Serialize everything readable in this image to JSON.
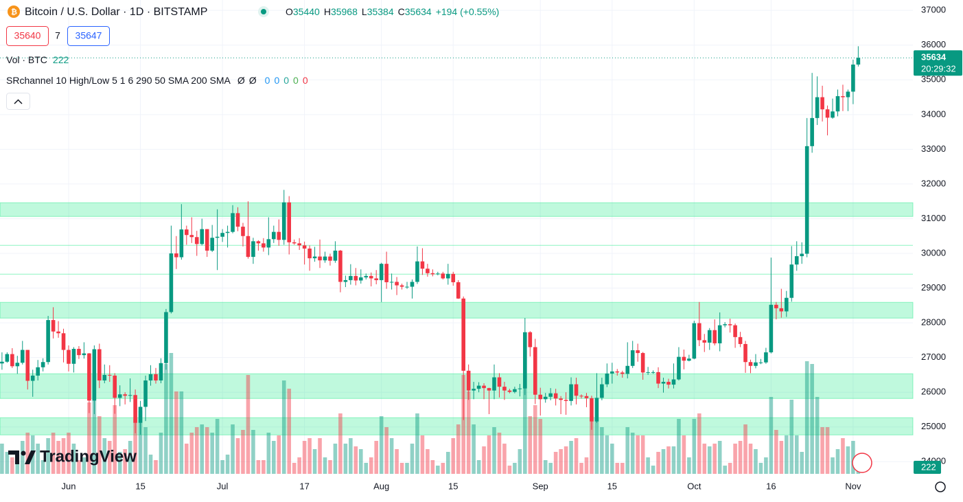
{
  "header": {
    "symbol": "Bitcoin / U.S. Dollar · 1D · BITSTAMP",
    "o": "O",
    "h": "H",
    "l": "L",
    "c": "C",
    "change": "+194 (+0.55%)",
    "bid": 35640,
    "spread": 7,
    "ask": 35647,
    "vol_label": "Vol · BTC"
  },
  "indicator": {
    "label": "SRchannel 10 High/Low 5 1 6 290 50 SMA 200 SMA",
    "marks": [
      "Ø",
      "Ø"
    ],
    "values": [
      0,
      0,
      0,
      0,
      0
    ],
    "colors": [
      "#2196f3",
      "#2196f3",
      "#26a69a",
      "#4caf50",
      "#f23645"
    ]
  },
  "logo": "TradingView",
  "chart_data": {
    "type": "candlestick",
    "up_color": "#089981",
    "down_color": "#f23645",
    "ylim": [
      23650,
      37300
    ],
    "yticks": [
      24000,
      25000,
      26000,
      27000,
      28000,
      29000,
      30000,
      31000,
      32000,
      33000,
      34000,
      35000,
      36000,
      37000
    ],
    "vlim": [
      0,
      5000
    ],
    "last_time": "20:29:32",
    "zones": [
      {
        "low": 31064,
        "high": 31460
      },
      {
        "low": 28136,
        "high": 28591
      },
      {
        "low": 25821,
        "high": 26533
      },
      {
        "low": 24772,
        "high": 25267
      }
    ],
    "levels": [
      30233,
      29402
    ],
    "zone_color": "#00e676",
    "categories": [
      null,
      null,
      null,
      null,
      null,
      null,
      null,
      null,
      null,
      null,
      null,
      null,
      null,
      "Jun",
      null,
      null,
      null,
      null,
      null,
      null,
      null,
      null,
      null,
      null,
      null,
      null,
      null,
      "15",
      null,
      null,
      null,
      null,
      null,
      null,
      null,
      null,
      null,
      null,
      null,
      null,
      null,
      null,
      null,
      "Jul",
      null,
      null,
      null,
      null,
      null,
      null,
      null,
      null,
      null,
      null,
      null,
      null,
      null,
      null,
      null,
      "17",
      null,
      null,
      null,
      null,
      null,
      null,
      null,
      null,
      null,
      null,
      null,
      null,
      null,
      null,
      "Aug",
      null,
      null,
      null,
      null,
      null,
      null,
      null,
      null,
      null,
      null,
      null,
      null,
      null,
      "15",
      null,
      null,
      null,
      null,
      null,
      null,
      null,
      null,
      null,
      null,
      null,
      null,
      null,
      null,
      null,
      null,
      "Sep",
      null,
      null,
      null,
      null,
      null,
      null,
      null,
      null,
      null,
      null,
      null,
      null,
      null,
      "15",
      null,
      null,
      null,
      null,
      null,
      null,
      null,
      null,
      null,
      null,
      null,
      null,
      null,
      null,
      null,
      "Oct",
      null,
      null,
      null,
      null,
      null,
      null,
      null,
      null,
      null,
      null,
      null,
      null,
      null,
      null,
      "16",
      null,
      null,
      null,
      null,
      null,
      null,
      null,
      null,
      null,
      null,
      null,
      null,
      null,
      null,
      null,
      "Nov",
      null
    ],
    "open": [
      26830,
      26880,
      27100,
      26750,
      26850,
      27220,
      26330,
      26480,
      26720,
      26870,
      28080,
      27750,
      27700,
      27220,
      26820,
      27250,
      27070,
      27120,
      25760,
      27240,
      26340,
      26500,
      26480,
      25840,
      25940,
      25900,
      25920,
      25120,
      25580,
      26340,
      26520,
      26340,
      26840,
      28310,
      30000,
      29890,
      30690,
      30530,
      30470,
      30270,
      30700,
      30080,
      30450,
      30480,
      30590,
      30620,
      31160,
      30770,
      30500,
      29900,
      30350,
      30290,
      30170,
      30410,
      30620,
      30390,
      31470,
      30320,
      30290,
      30230,
      30140,
      29860,
      29910,
      29800,
      29910,
      29790,
      30080,
      29180,
      29230,
      29350,
      29220,
      29310,
      29350,
      29280,
      29230,
      29700,
      29170,
      29180,
      29080,
      29040,
      29040,
      29180,
      29770,
      29560,
      29430,
      29400,
      29420,
      29280,
      29410,
      29170,
      28700,
      26620,
      26050,
      26100,
      26190,
      26120,
      26050,
      26430,
      26160,
      26050,
      26010,
      26090,
      26110,
      27730,
      27300,
      25930,
      25800,
      25870,
      25970,
      25820,
      25780,
      25750,
      26230,
      25900,
      25890,
      25830,
      25160,
      25840,
      26230,
      26540,
      26600,
      26570,
      26530,
      26760,
      27210,
      27130,
      26570,
      26580,
      26580,
      26250,
      26300,
      26220,
      26370,
      27020,
      26910,
      26970,
      27990,
      27500,
      27430,
      27790,
      27410,
      27930,
      27960,
      27930,
      27590,
      27390,
      26870,
      26760,
      26860,
      26860,
      27150,
      28520,
      28420,
      28330,
      28720,
      29680,
      29920,
      29990,
      33090,
      33900,
      34500,
      34150,
      33910,
      34090,
      34530,
      34500,
      34660,
      35440
    ],
    "high": [
      27150,
      27150,
      27270,
      27050,
      27480,
      27220,
      26650,
      26930,
      26980,
      28200,
      28450,
      28050,
      27830,
      27350,
      27300,
      27330,
      27440,
      27130,
      27350,
      27400,
      26800,
      26780,
      26550,
      26200,
      26000,
      26400,
      26080,
      25750,
      26480,
      26780,
      26700,
      26980,
      28400,
      30800,
      30500,
      31420,
      30800,
      31040,
      30650,
      31000,
      30700,
      30820,
      31270,
      30700,
      30800,
      31390,
      31330,
      30880,
      31500,
      30450,
      30380,
      30440,
      31040,
      30800,
      30980,
      31830,
      31650,
      30400,
      30440,
      30340,
      30230,
      30190,
      30400,
      30050,
      29990,
      30350,
      30100,
      29360,
      29690,
      29580,
      29540,
      29420,
      29450,
      29520,
      29730,
      30050,
      29420,
      29320,
      29130,
      29180,
      29250,
      30200,
      30150,
      29700,
      29540,
      29470,
      29470,
      29700,
      29470,
      29230,
      28760,
      26800,
      26300,
      26290,
      26260,
      26130,
      26800,
      26550,
      26300,
      26100,
      26160,
      26240,
      28140,
      27760,
      27540,
      26130,
      25980,
      26120,
      26100,
      25890,
      26000,
      26430,
      26420,
      25940,
      25980,
      25900,
      26550,
      26420,
      26830,
      26850,
      26670,
      26620,
      27440,
      27480,
      27400,
      27160,
      26730,
      26630,
      26720,
      26420,
      26390,
      26830,
      27300,
      27230,
      27080,
      28060,
      28600,
      27680,
      27850,
      28100,
      28300,
      28020,
      28120,
      27980,
      27740,
      27480,
      26940,
      27100,
      26960,
      27280,
      29880,
      28600,
      28980,
      28920,
      30210,
      30350,
      30320,
      33900,
      35200,
      35100,
      34830,
      34260,
      34460,
      34720,
      34860,
      34720,
      35580,
      35968
    ],
    "low": [
      26650,
      26850,
      26700,
      26530,
      26800,
      26080,
      25870,
      26340,
      26600,
      26800,
      27550,
      27570,
      26860,
      26600,
      26570,
      26960,
      26970,
      25400,
      25370,
      26120,
      26260,
      26300,
      25380,
      25600,
      25650,
      25720,
      24820,
      24780,
      25170,
      26190,
      26250,
      26260,
      26650,
      28270,
      29550,
      29820,
      30250,
      30300,
      29930,
      30230,
      29900,
      30040,
      29520,
      30330,
      30170,
      30580,
      30640,
      30200,
      29850,
      29700,
      30080,
      30050,
      29950,
      30300,
      30220,
      30250,
      29970,
      30250,
      30100,
      29680,
      29500,
      29760,
      29580,
      29730,
      29650,
      29730,
      28880,
      29030,
      29100,
      29080,
      29130,
      29250,
      29050,
      29110,
      28600,
      28980,
      28960,
      28800,
      28960,
      28980,
      28700,
      29120,
      29380,
      29330,
      29340,
      29370,
      29250,
      29100,
      29070,
      28690,
      25200,
      25780,
      25800,
      26000,
      25800,
      25370,
      25800,
      25850,
      25780,
      25970,
      25970,
      25880,
      25920,
      27030,
      25660,
      25330,
      25700,
      25770,
      25620,
      25370,
      25350,
      25620,
      25650,
      25820,
      25570,
      24920,
      25120,
      25770,
      26150,
      26250,
      26480,
      26420,
      26400,
      26700,
      26880,
      26360,
      26500,
      26530,
      26120,
      25990,
      26110,
      26110,
      26340,
      26660,
      26890,
      26950,
      27330,
      27160,
      27220,
      27350,
      27180,
      27870,
      27720,
      27280,
      27300,
      26560,
      26550,
      26690,
      26810,
      26820,
      27120,
      28100,
      28150,
      28170,
      28610,
      29500,
      29700,
      29890,
      32900,
      33700,
      33800,
      33400,
      33880,
      33950,
      34100,
      34100,
      34300,
      35384
    ],
    "close": [
      26880,
      27100,
      26750,
      26850,
      27220,
      26330,
      26480,
      26720,
      26870,
      28080,
      27750,
      27700,
      27220,
      26820,
      27250,
      27070,
      27120,
      25760,
      27240,
      26340,
      26500,
      26480,
      25840,
      25940,
      25900,
      25920,
      25120,
      25580,
      26340,
      26520,
      26340,
      26840,
      28310,
      30000,
      29890,
      30690,
      30530,
      30470,
      30270,
      30700,
      30080,
      30450,
      30480,
      30590,
      30620,
      31160,
      30770,
      30500,
      29900,
      30350,
      30290,
      30170,
      30410,
      30620,
      30390,
      31470,
      30320,
      30290,
      30230,
      30140,
      29860,
      29910,
      29800,
      29910,
      29790,
      30080,
      29180,
      29230,
      29350,
      29220,
      29310,
      29350,
      29280,
      29230,
      29700,
      29170,
      29180,
      29080,
      29040,
      29040,
      29180,
      29770,
      29560,
      29430,
      29400,
      29420,
      29280,
      29410,
      29170,
      28700,
      26620,
      26050,
      26100,
      26190,
      26120,
      26050,
      26430,
      26160,
      26050,
      26010,
      26090,
      26110,
      27730,
      27300,
      25930,
      25800,
      25870,
      25970,
      25820,
      25780,
      25750,
      26230,
      25900,
      25890,
      25830,
      25160,
      25840,
      26230,
      26540,
      26600,
      26570,
      26530,
      26760,
      27210,
      27130,
      26570,
      26580,
      26580,
      26250,
      26300,
      26220,
      26370,
      27020,
      26910,
      26970,
      27990,
      27500,
      27430,
      27790,
      27410,
      27930,
      27960,
      27930,
      27590,
      27390,
      26870,
      26760,
      26860,
      26860,
      27150,
      28520,
      28420,
      28330,
      28720,
      29680,
      29920,
      29990,
      33090,
      33900,
      34500,
      34150,
      33910,
      34090,
      34530,
      34500,
      34660,
      35440,
      35634
    ],
    "volume": [
      1100,
      800,
      600,
      700,
      1200,
      1500,
      1400,
      1100,
      500,
      1300,
      1500,
      1200,
      1300,
      1500,
      1100,
      500,
      600,
      2600,
      3600,
      2100,
      1300,
      1200,
      2500,
      800,
      900,
      1200,
      2000,
      2300,
      1700,
      700,
      500,
      1500,
      4000,
      4400,
      3000,
      3000,
      1100,
      1500,
      1700,
      1800,
      1700,
      1500,
      2000,
      500,
      700,
      1800,
      1300,
      1600,
      3600,
      1600,
      500,
      500,
      1500,
      1200,
      1400,
      3400,
      3100,
      400,
      600,
      1200,
      1300,
      900,
      1300,
      600,
      500,
      1100,
      2200,
      1100,
      1300,
      1000,
      900,
      400,
      600,
      1200,
      2100,
      1700,
      1300,
      900,
      400,
      400,
      1100,
      2200,
      1400,
      900,
      500,
      300,
      400,
      800,
      1300,
      1800,
      3600,
      3000,
      1800,
      500,
      1000,
      1400,
      1700,
      1500,
      1100,
      300,
      400,
      900,
      4500,
      2100,
      2500,
      2000,
      500,
      400,
      800,
      900,
      1000,
      1200,
      1300,
      400,
      600,
      2100,
      2000,
      1700,
      1400,
      1100,
      400,
      400,
      1700,
      1500,
      1400,
      1400,
      600,
      300,
      800,
      900,
      1000,
      1000,
      2000,
      1400,
      600,
      2000,
      2200,
      1100,
      1000,
      1100,
      1200,
      300,
      400,
      1100,
      1200,
      1800,
      1100,
      900,
      400,
      600,
      2800,
      1600,
      1200,
      1400,
      2700,
      1400,
      800,
      4100,
      4000,
      2800,
      1700,
      1700,
      600,
      900,
      1300,
      1000,
      1200,
      222
    ]
  }
}
